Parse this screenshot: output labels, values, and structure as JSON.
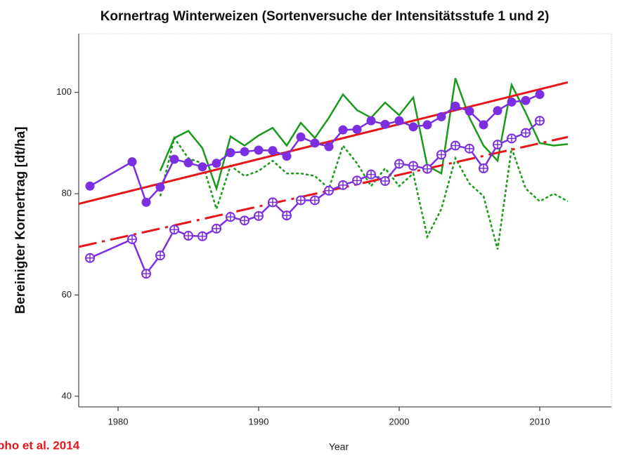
{
  "chart_data": {
    "type": "line",
    "title": "Kornertrag Winterweizen (Sortenversuche der Intensitätsstufe 1 und 2)",
    "y_label": "Bereinigter Kornertrag [dt/ha]",
    "x_label": "Year",
    "annotation": "pho et al. 2014",
    "xlim": [
      1977.2,
      2015.1
    ],
    "ylim": [
      37.9,
      111.6
    ],
    "xticks": [
      1980,
      1990,
      2000,
      2010
    ],
    "yticks": [
      40,
      60,
      80,
      100
    ],
    "series": [
      {
        "color": "#1a9a1a",
        "dash": "solid",
        "marker": "none",
        "x": [
          1983,
          1984,
          1985,
          1986,
          1987,
          1988,
          1989,
          1990,
          1991,
          1992,
          1993,
          1994,
          1995,
          1996,
          1997,
          1998,
          1999,
          2000,
          2001,
          2002,
          2003,
          2004,
          2005,
          2006,
          2007,
          2008,
          2009,
          2010,
          2011,
          2012
        ],
        "values": [
          84.5,
          91,
          92.4,
          89,
          81,
          91.3,
          89.5,
          91.5,
          93,
          89.5,
          94,
          91,
          95,
          99.6,
          96.5,
          95,
          98,
          95.5,
          99,
          85.5,
          84,
          102.8,
          95,
          89.5,
          86.5,
          101.5,
          96,
          90,
          89.5,
          89.8
        ]
      },
      {
        "color": "#1a9a1a",
        "dash": "dotted",
        "marker": "none",
        "x": [
          1983,
          1984,
          1985,
          1986,
          1987,
          1988,
          1989,
          1990,
          1991,
          1992,
          1993,
          1994,
          1995,
          1996,
          1997,
          1998,
          1999,
          2000,
          2001,
          2002,
          2003,
          2004,
          2005,
          2006,
          2007,
          2008,
          2009,
          2010,
          2011,
          2012
        ],
        "values": [
          79.5,
          91,
          87,
          86,
          77,
          85.5,
          83.5,
          84.5,
          86.5,
          84,
          84,
          83.5,
          81,
          89.5,
          86,
          81.5,
          85,
          81.5,
          84,
          71.5,
          77,
          87,
          82,
          79.5,
          69,
          89,
          81,
          78.5,
          80,
          78.5
        ]
      },
      {
        "color": "#e8151b",
        "dash": "solid",
        "marker": "none",
        "x": [
          1977.2,
          2012
        ],
        "values": [
          78,
          102
        ]
      },
      {
        "color": "#e8151b",
        "dash": "longdash",
        "marker": "none",
        "x": [
          1977.2,
          2012
        ],
        "values": [
          69.5,
          91.2
        ]
      },
      {
        "color": "#7b2fe0",
        "dash": "solid",
        "marker": "filled",
        "x": [
          1978,
          1981,
          1982,
          1983,
          1984,
          1985,
          1986,
          1987,
          1988,
          1989,
          1990,
          1991,
          1992,
          1993,
          1994,
          1995,
          1996,
          1997,
          1998,
          1999,
          2000,
          2001,
          2002,
          2003,
          2004,
          2005,
          2006,
          2007,
          2008,
          2009,
          2010
        ],
        "values": [
          81.5,
          86.3,
          78.3,
          81.3,
          86.8,
          86.1,
          85.3,
          86,
          88.1,
          88.3,
          88.6,
          88.5,
          87.4,
          91.2,
          90,
          89.3,
          92.6,
          92.7,
          94.4,
          93.7,
          94.4,
          93.2,
          93.6,
          95.2,
          97.3,
          96.3,
          93.6,
          96.4,
          98.1,
          98.4,
          99.6
        ]
      },
      {
        "color": "#7b2fe0",
        "dash": "solid",
        "marker": "open",
        "x": [
          1978,
          1981,
          1982,
          1983,
          1984,
          1985,
          1986,
          1987,
          1988,
          1989,
          1990,
          1991,
          1992,
          1993,
          1994,
          1995,
          1996,
          1997,
          1998,
          1999,
          2000,
          2001,
          2002,
          2003,
          2004,
          2005,
          2006,
          2007,
          2008,
          2009,
          2010
        ],
        "values": [
          67.3,
          71,
          64.2,
          67.8,
          72.9,
          71.7,
          71.6,
          73.1,
          75.4,
          74.7,
          75.6,
          78.3,
          75.7,
          78.7,
          78.7,
          80.6,
          81.7,
          82.6,
          83.8,
          82.5,
          85.9,
          85.5,
          84.9,
          87.7,
          89.5,
          88.9,
          85,
          89.7,
          90.9,
          92,
          94.4
        ]
      }
    ]
  }
}
